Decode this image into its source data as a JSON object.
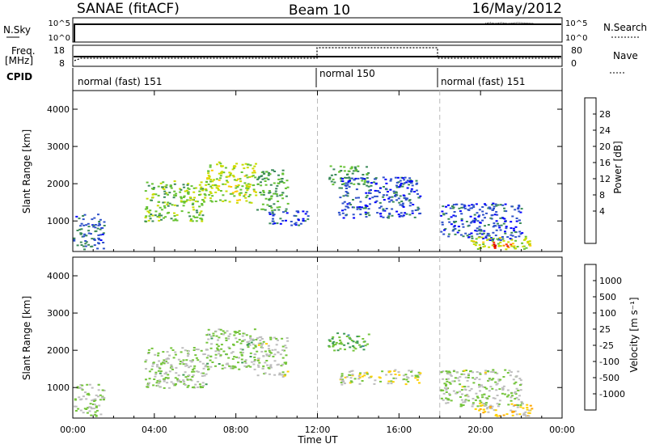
{
  "header": {
    "station": "SANAE (fitACF)",
    "beam": "Beam 10",
    "date": "16/May/2012"
  },
  "strip": {
    "nsky_label": "N.Sky",
    "nsky_ticks": [
      "10^5",
      "10^0"
    ],
    "nsearch_label": "N.Search",
    "nsearch_ticks": [
      "10^5",
      "10^0"
    ],
    "freq_label_1": "Freq.",
    "freq_label_2": "[MHz]",
    "freq_ticks": [
      "18",
      "8"
    ],
    "nave_label": "Nave",
    "nave_ticks": [
      "80",
      "0"
    ],
    "cpid_label": "CPID",
    "cpid_segments": [
      "normal (fast) 151",
      "normal 150",
      "normal (fast) 151"
    ]
  },
  "power_panel": {
    "ylabel": "Slant Range [km]",
    "yticks": [
      "4000",
      "3000",
      "2000",
      "1000"
    ],
    "colorbar_label": "Power [dB]",
    "colorbar_ticks": [
      "28",
      "24",
      "20",
      "16",
      "12",
      "8",
      "4"
    ],
    "colors": [
      "#0000ff",
      "#2f52c9",
      "#3b8a5a",
      "#66c233",
      "#c8dc00",
      "#ffc800",
      "#ff8c00",
      "#ff3c00",
      "#dc0000"
    ]
  },
  "velocity_panel": {
    "ylabel": "Slant Range [km]",
    "yticks": [
      "4000",
      "3000",
      "2000",
      "1000"
    ],
    "colorbar_label": "Velocity [m s⁻¹]",
    "colorbar_ticks": [
      "1000",
      "500",
      "100",
      "25",
      "-25",
      "-100",
      "-500",
      "-1000"
    ],
    "colors": [
      "#2456d6",
      "#3f88a5",
      "#3e9b55",
      "#74c43b",
      "#bdbdbd",
      "#ffd000",
      "#ffa500",
      "#ff6a00",
      "#ff0000"
    ]
  },
  "xaxis": {
    "label": "Time UT",
    "ticks": [
      "00:00",
      "04:00",
      "08:00",
      "12:00",
      "16:00",
      "20:00",
      "00:00"
    ]
  },
  "chart_data": {
    "type": "heatmap",
    "title": "SANAE (fitACF)",
    "x_range_hours": [
      0,
      24
    ],
    "y_range_km": [
      180,
      4500
    ],
    "mode_changes_hours": [
      12,
      18
    ],
    "panels": [
      {
        "name": "Power [dB]",
        "zrange": [
          0,
          30
        ],
        "features": [
          {
            "t": [
              0.0,
              1.5
            ],
            "r": [
              250,
              1200
            ],
            "z": 6
          },
          {
            "t": [
              3.5,
              6.5
            ],
            "r": [
              1000,
              2100
            ],
            "z": 12
          },
          {
            "t": [
              6.5,
              9.0
            ],
            "r": [
              1500,
              2600
            ],
            "z": 14
          },
          {
            "t": [
              9.0,
              10.5
            ],
            "r": [
              1300,
              2400
            ],
            "z": 10
          },
          {
            "t": [
              9.5,
              11.5
            ],
            "r": [
              900,
              1300
            ],
            "z": 5
          },
          {
            "t": [
              12.5,
              14.5
            ],
            "r": [
              2000,
              2500
            ],
            "z": 10
          },
          {
            "t": [
              13.0,
              17.0
            ],
            "r": [
              1100,
              2200
            ],
            "z": 5
          },
          {
            "t": [
              18.0,
              22.0
            ],
            "r": [
              500,
              1500
            ],
            "z": 5
          },
          {
            "t": [
              19.5,
              22.5
            ],
            "r": [
              250,
              600
            ],
            "z": 14
          },
          {
            "t": [
              20.5,
              21.5
            ],
            "r": [
              250,
              450
            ],
            "z": 26
          }
        ]
      },
      {
        "name": "Velocity [m s⁻¹]",
        "zrange": [
          -1000,
          1000
        ],
        "features": [
          {
            "t": [
              0.0,
              1.5
            ],
            "r": [
              250,
              1100
            ],
            "z": -100
          },
          {
            "t": [
              3.5,
              6.5
            ],
            "r": [
              1000,
              2100
            ],
            "z": -120
          },
          {
            "t": [
              6.5,
              9.0
            ],
            "r": [
              1500,
              2600
            ],
            "z": -150
          },
          {
            "t": [
              9.0,
              10.5
            ],
            "r": [
              1300,
              2400
            ],
            "z": -90
          },
          {
            "t": [
              12.5,
              14.5
            ],
            "r": [
              2000,
              2500
            ],
            "z": -350
          },
          {
            "t": [
              13.0,
              17.0
            ],
            "r": [
              1100,
              1500
            ],
            "z": 0
          },
          {
            "t": [
              18.0,
              22.0
            ],
            "r": [
              500,
              1500
            ],
            "z": -100
          },
          {
            "t": [
              19.5,
              22.5
            ],
            "r": [
              250,
              600
            ],
            "z": 200
          }
        ]
      }
    ]
  }
}
